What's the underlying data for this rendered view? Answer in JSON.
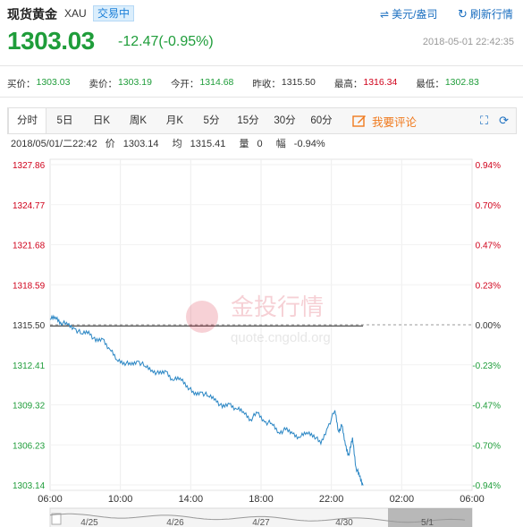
{
  "header": {
    "name": "现货黄金",
    "code": "XAU",
    "status": "交易中",
    "unit_link": "美元/盎司",
    "refresh_link": "刷新行情"
  },
  "price": {
    "last": "1303.03",
    "change": "-12.47(-0.95%)",
    "timestamp": "2018-05-01 22:42:35"
  },
  "quotes": [
    {
      "label": "买价：",
      "value": "1303.03",
      "color": "#1f9d3a"
    },
    {
      "label": "卖价：",
      "value": "1303.19",
      "color": "#1f9d3a"
    },
    {
      "label": "今开：",
      "value": "1314.68",
      "color": "#1f9d3a"
    },
    {
      "label": "昨收：",
      "value": "1315.50",
      "color": "#333333"
    },
    {
      "label": "最高：",
      "value": "1316.34",
      "color": "#d0021b"
    },
    {
      "label": "最低：",
      "value": "1302.83",
      "color": "#1f9d3a"
    }
  ],
  "tabs": [
    "分时",
    "5日",
    "日K",
    "周K",
    "月K",
    "5分",
    "15分",
    "30分",
    "60分"
  ],
  "comment_label": "我要评论",
  "info": {
    "datetime": "2018/05/01/二22:42",
    "price_label": "价",
    "price": "1303.14",
    "avg_label": "均",
    "avg": "1315.41",
    "vol_label": "量",
    "vol": "0",
    "amp_label": "幅",
    "amp": "-0.94%"
  },
  "watermark": {
    "brand": "金投行情",
    "url": "quote.cngold.org"
  },
  "colors": {
    "up": "#d0021b",
    "down": "#1f9d3a",
    "line": "#2a86c4",
    "accent": "#f07a1e"
  },
  "chart_data": {
    "type": "line",
    "x_ticks": [
      "06:00",
      "10:00",
      "14:00",
      "18:00",
      "22:00",
      "02:00",
      "06:00"
    ],
    "y_ticks": [
      "1327.86",
      "1324.77",
      "1321.68",
      "1318.59",
      "1315.50",
      "1312.41",
      "1309.32",
      "1306.23",
      "1303.14"
    ],
    "pct_ticks": [
      "0.94%",
      "0.70%",
      "0.47%",
      "0.23%",
      "0.00%",
      "-0.23%",
      "-0.47%",
      "-0.70%",
      "-0.94%"
    ],
    "ylim": [
      1303.14,
      1327.86
    ],
    "base": 1315.5,
    "x_hours": [
      0,
      0.3,
      0.6,
      1.0,
      1.4,
      1.8,
      2.2,
      2.6,
      3.0,
      3.4,
      3.8,
      4.2,
      4.6,
      5.0,
      5.4,
      5.8,
      6.2,
      6.6,
      7.0,
      7.4,
      7.8,
      8.2,
      8.6,
      9.0,
      9.4,
      9.8,
      10.2,
      10.6,
      11.0,
      11.4,
      11.8,
      12.2,
      12.6,
      13.0,
      13.4,
      13.8,
      14.2,
      14.6,
      15.0,
      15.4,
      15.8,
      16.2,
      16.4,
      16.6,
      16.8,
      17.0,
      17.2,
      17.4,
      17.6,
      17.8
    ],
    "values": [
      1315.9,
      1316.1,
      1315.7,
      1315.5,
      1315.2,
      1314.8,
      1315.0,
      1314.2,
      1314.4,
      1313.6,
      1312.8,
      1312.6,
      1312.4,
      1312.7,
      1312.3,
      1312.0,
      1311.7,
      1311.9,
      1311.2,
      1311.4,
      1310.8,
      1310.1,
      1310.3,
      1310.0,
      1309.8,
      1309.1,
      1309.4,
      1309.0,
      1308.8,
      1308.2,
      1308.7,
      1308.0,
      1307.9,
      1307.2,
      1307.4,
      1307.1,
      1306.8,
      1307.2,
      1307.0,
      1306.3,
      1307.6,
      1308.9,
      1307.3,
      1307.7,
      1306.2,
      1305.4,
      1306.8,
      1304.5,
      1303.8,
      1303.1
    ],
    "avg_line": 1315.41,
    "nav_labels": [
      "4/25",
      "4/26",
      "4/27",
      "4/30",
      "5/1"
    ]
  }
}
